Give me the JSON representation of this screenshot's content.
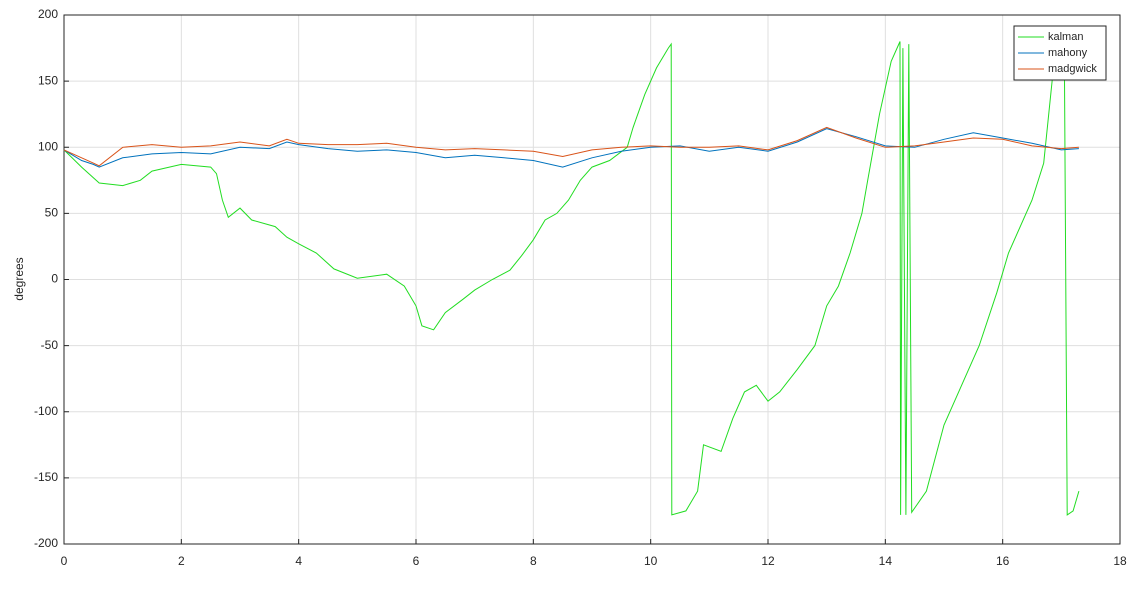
{
  "chart_data": {
    "type": "line",
    "ylabel": "degrees",
    "xlim": [
      0,
      18
    ],
    "xticks": [
      0,
      2,
      4,
      6,
      8,
      10,
      12,
      14,
      16,
      18
    ],
    "ylim": [
      -200,
      200
    ],
    "yticks": [
      -200,
      -150,
      -100,
      -50,
      0,
      50,
      100,
      150,
      200
    ],
    "grid": true,
    "legend": "top-right",
    "series": [
      {
        "name": "kalman",
        "color": "#22dd22",
        "x": [
          0,
          0.3,
          0.6,
          1,
          1.3,
          1.5,
          2,
          2.5,
          2.6,
          2.7,
          2.8,
          3,
          3.2,
          3.6,
          3.8,
          4,
          4.3,
          4.6,
          5,
          5.5,
          5.8,
          6,
          6.1,
          6.3,
          6.5,
          6.8,
          7,
          7.3,
          7.6,
          7.8,
          8,
          8.2,
          8.4,
          8.6,
          8.8,
          9,
          9.3,
          9.6,
          9.7,
          9.9,
          10.1,
          10.3,
          10.35,
          10.36,
          10.6,
          10.8,
          10.9,
          11.2,
          11.4,
          11.6,
          11.8,
          12,
          12.2,
          12.5,
          12.8,
          13,
          13.2,
          13.4,
          13.6,
          13.7,
          13.9,
          14.1,
          14.25,
          14.26,
          14.3,
          14.35,
          14.4,
          14.45,
          14.7,
          15,
          15.3,
          15.6,
          15.9,
          16.1,
          16.5,
          16.7,
          16.9,
          17.05,
          17.1,
          17.2,
          17.3
        ],
        "values": [
          98,
          85,
          73,
          71,
          75,
          82,
          87,
          85,
          80,
          60,
          47,
          54,
          45,
          40,
          32,
          27,
          20,
          8,
          1,
          4,
          -5,
          -20,
          -35,
          -38,
          -25,
          -15,
          -8,
          0,
          7,
          18,
          30,
          45,
          50,
          60,
          75,
          85,
          90,
          100,
          115,
          140,
          160,
          175,
          178,
          -178,
          -175,
          -160,
          -125,
          -130,
          -105,
          -85,
          -80,
          -92,
          -85,
          -68,
          -50,
          -20,
          -5,
          20,
          50,
          75,
          125,
          165,
          180,
          -178,
          175,
          -178,
          178,
          -176,
          -160,
          -110,
          -80,
          -50,
          -10,
          20,
          60,
          88,
          175,
          178,
          -178,
          -175,
          -160
        ]
      },
      {
        "name": "mahony",
        "color": "#0072bd",
        "x": [
          0,
          0.3,
          0.5,
          0.6,
          1,
          1.5,
          2,
          2.5,
          3,
          3.5,
          3.8,
          4,
          4.5,
          5,
          5.5,
          6,
          6.5,
          7,
          7.5,
          8,
          8.5,
          9,
          9.5,
          10,
          10.5,
          11,
          11.5,
          12,
          12.5,
          13,
          13.5,
          14,
          14.5,
          15,
          15.5,
          16,
          16.5,
          17,
          17.3
        ],
        "values": [
          98,
          90,
          87,
          85,
          92,
          95,
          96,
          95,
          100,
          99,
          104,
          102,
          99,
          97,
          98,
          96,
          92,
          94,
          92,
          90,
          85,
          92,
          97,
          100,
          101,
          97,
          100,
          97,
          104,
          114,
          108,
          101,
          100,
          106,
          111,
          107,
          103,
          98,
          99
        ]
      },
      {
        "name": "madgwick",
        "color": "#d95319",
        "x": [
          0,
          0.3,
          0.5,
          0.6,
          1,
          1.5,
          2,
          2.5,
          3,
          3.5,
          3.8,
          4,
          4.5,
          5,
          5.5,
          6,
          6.5,
          7,
          7.5,
          8,
          8.5,
          9,
          9.5,
          10,
          10.5,
          11,
          11.5,
          12,
          12.5,
          13,
          13.5,
          14,
          14.5,
          15,
          15.5,
          16,
          16.5,
          17,
          17.3
        ],
        "values": [
          98,
          92,
          88,
          86,
          100,
          102,
          100,
          101,
          104,
          101,
          106,
          103,
          102,
          102,
          103,
          100,
          98,
          99,
          98,
          97,
          93,
          98,
          100,
          101,
          100,
          100,
          101,
          98,
          105,
          115,
          107,
          100,
          101,
          104,
          107,
          106,
          101,
          99,
          100
        ]
      }
    ]
  }
}
